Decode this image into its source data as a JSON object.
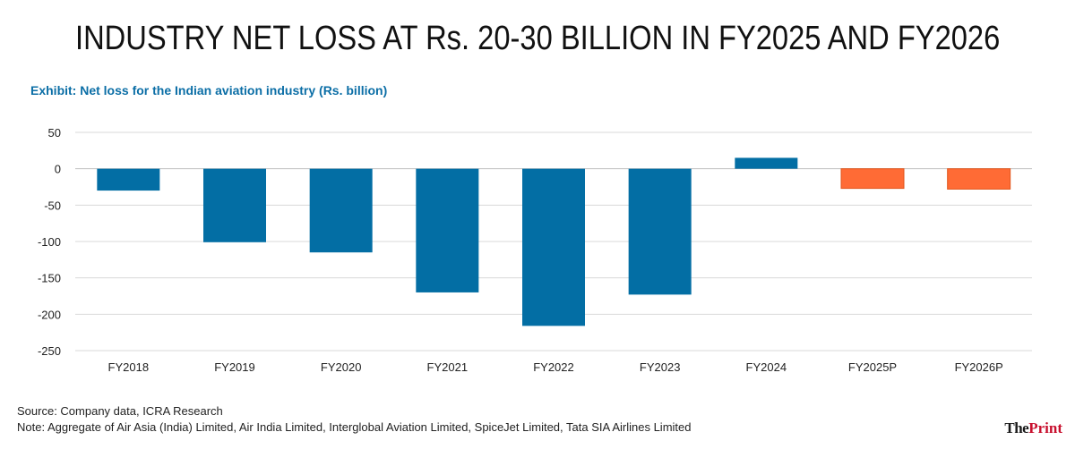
{
  "headline": "INDUSTRY NET LOSS AT Rs. 20-30 BILLION IN FY2025 AND FY2026",
  "subtitle": "Exhibit: Net loss for the Indian aviation industry (Rs. billion)",
  "footer": {
    "source": "Source: Company data, ICRA Research",
    "note": "Note: Aggregate of Air Asia (India) Limited, Air India Limited, Interglobal Aviation Limited, SpiceJet Limited, Tata SIA Airlines Limited"
  },
  "logo": {
    "part1": "The",
    "part2": "Print"
  },
  "chart_data": {
    "type": "bar",
    "title": "Exhibit: Net loss for the Indian aviation industry (Rs. billion)",
    "xlabel": "",
    "ylabel": "",
    "ylim": [
      -250,
      50
    ],
    "yticks": [
      50,
      0,
      -50,
      -100,
      -150,
      -200,
      -250
    ],
    "grid": true,
    "categories": [
      "FY2018",
      "FY2019",
      "FY2020",
      "FY2021",
      "FY2022",
      "FY2023",
      "FY2024",
      "FY2025P",
      "FY2026P"
    ],
    "values": [
      -30,
      -101,
      -115,
      -170,
      -216,
      -173,
      15,
      -27,
      -28
    ],
    "colors": {
      "actual": "#036ea4",
      "projected": "#ff6b35",
      "grid": "#d9d9d9",
      "axis": "#bfbfbf"
    },
    "projected_categories": [
      "FY2025P",
      "FY2026P"
    ]
  }
}
